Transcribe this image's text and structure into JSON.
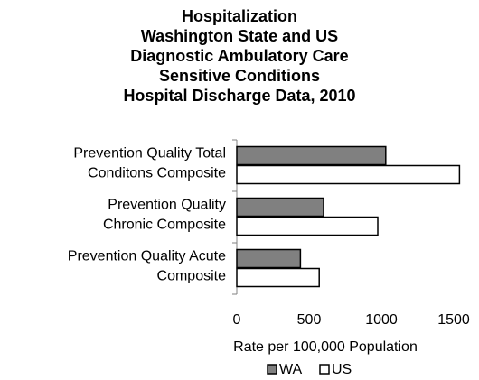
{
  "chart_data": {
    "type": "hbar",
    "title": [
      "Hospitalization",
      "Washington State and US",
      "Diagnostic Ambulatory Care",
      "Sensitive Conditions",
      "Hospital Discharge Data, 2010"
    ],
    "categories": [
      [
        "Prevention Quality Total",
        "Conditons Composite"
      ],
      [
        "Prevention Quality",
        "Chronic Composite"
      ],
      [
        "Prevention Quality Acute",
        "Composite"
      ]
    ],
    "series": [
      {
        "name": "WA",
        "color": "#808080",
        "values": [
          1030,
          600,
          440
        ]
      },
      {
        "name": "US",
        "color": "#ffffff",
        "values": [
          1540,
          975,
          570
        ]
      }
    ],
    "xlabel": "Rate per 100,000 Population",
    "xlim": [
      0,
      1600
    ],
    "xticks": [
      0,
      500,
      1000,
      1500
    ],
    "legend": "bottom"
  }
}
